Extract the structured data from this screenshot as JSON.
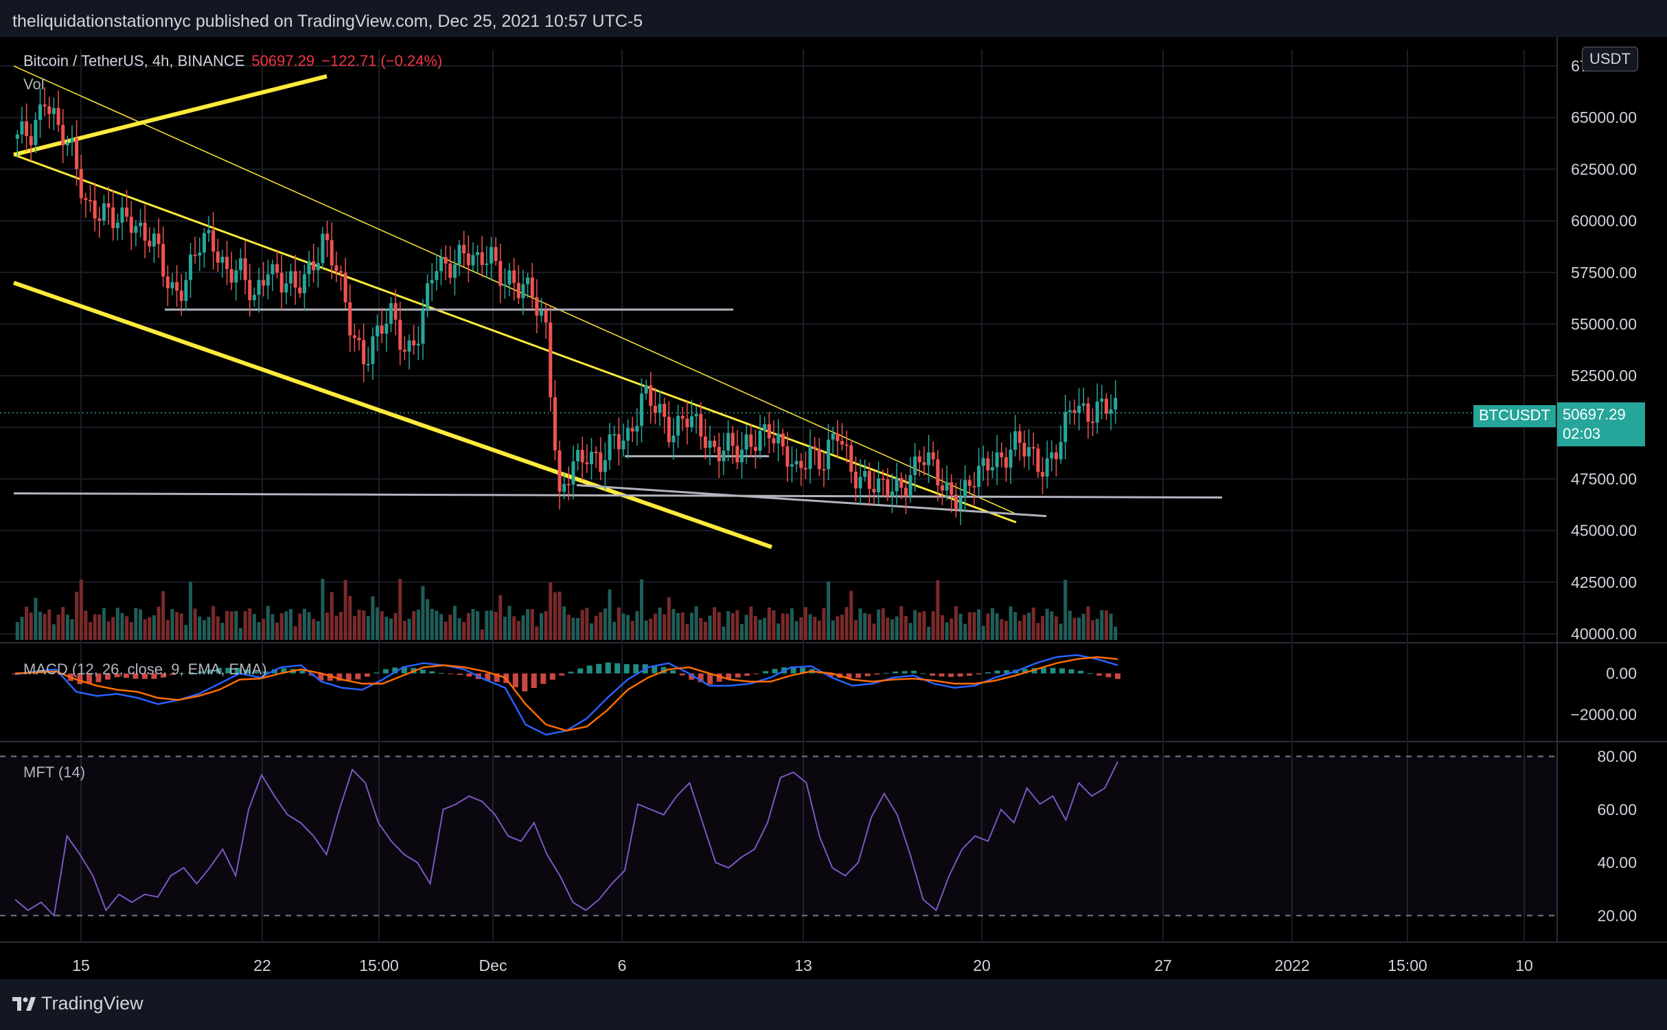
{
  "header": {
    "published_text": "theliquidationstationnyc published on TradingView.com, Dec 25, 2021 10:57 UTC-5"
  },
  "legend": {
    "symbol": "Bitcoin / TetherUS, 4h, BINANCE",
    "price": "50697.29",
    "change": "−122.71 (−0.24%)",
    "volume_label": "Vol",
    "macd_label": "MACD (12, 26, close, 9, EMA, EMA)",
    "mft_label": "MFT (14)"
  },
  "currency_badge": "USDT",
  "price_tag": {
    "symbol": "BTCUSDT",
    "price": "50697.29",
    "countdown": "02:03"
  },
  "footer": {
    "brand": "TradingView"
  },
  "colors": {
    "background": "#131722",
    "up": "#26a69a",
    "down": "#ef5350",
    "trendline": "#ffeb3b",
    "macd": "#2962ff",
    "signal": "#ff6d00",
    "mft": "#7e57c2"
  },
  "chart_data": [
    {
      "type": "candlestick",
      "title": "Bitcoin / TetherUS, 4h, BINANCE",
      "x_ticks": [
        "15",
        "22",
        "15:00",
        "Dec",
        "6",
        "13",
        "20",
        "27",
        "2022",
        "15:00",
        "10"
      ],
      "y_ticks": [
        "40000.00",
        "42500.00",
        "45000.00",
        "47500.00",
        "50000.00",
        "52500.00",
        "55000.00",
        "57500.00",
        "60000.00",
        "62500.00",
        "65000.00",
        "67500.00"
      ],
      "ylim": [
        39700,
        68300
      ],
      "last_price": 50697.29,
      "close_path": [
        63800,
        64300,
        66300,
        64000,
        63300,
        61000,
        60200,
        59800,
        60600,
        59300,
        58500,
        56800,
        57000,
        58500,
        59200,
        57800,
        57400,
        56000,
        58200,
        56900,
        56500,
        57900,
        59100,
        57300,
        55000,
        53400,
        54300,
        55600,
        53800,
        54500,
        57800,
        58100,
        58400,
        57600,
        58800,
        57200,
        56400,
        56800,
        55200,
        46000,
        48300,
        49100,
        48000,
        49300,
        49800,
        51600,
        50600,
        49900,
        50800,
        49600,
        48800,
        49600,
        48400,
        49200,
        50400,
        48800,
        47500,
        49200,
        48300,
        49500,
        48100,
        47600,
        46700,
        47100,
        47600,
        48400,
        47800,
        47100,
        46500,
        47400,
        48800,
        48500,
        49000,
        48800,
        48200,
        48900,
        51300,
        50900,
        50800,
        50697
      ],
      "volume_ylim": [
        0,
        100
      ]
    },
    {
      "type": "line",
      "title": "MACD (12, 26, close, 9, EMA, EMA)",
      "y_ticks": [
        "0.00",
        "−2000.00"
      ],
      "ylim": [
        -3200,
        1300
      ],
      "series": [
        {
          "values": [
            -50,
            100,
            200,
            -900,
            -1100,
            -1000,
            -1200,
            -1500,
            -1300,
            -1000,
            -500,
            0,
            -200,
            300,
            400,
            -400,
            -700,
            -800,
            -300,
            300,
            500,
            400,
            200,
            -300,
            -700,
            -2500,
            -3000,
            -2800,
            -2200,
            -1200,
            -300,
            300,
            500,
            0,
            -600,
            -600,
            -500,
            -200,
            300,
            350,
            -200,
            -600,
            -500,
            -200,
            -100,
            -500,
            -700,
            -600,
            -200,
            100,
            500,
            800,
            900,
            700,
            400
          ]
        },
        {
          "values": [
            0,
            50,
            100,
            -300,
            -600,
            -800,
            -900,
            -1200,
            -1300,
            -1100,
            -800,
            -300,
            -250,
            0,
            200,
            0,
            -300,
            -500,
            -500,
            -100,
            300,
            400,
            300,
            100,
            -200,
            -1500,
            -2500,
            -2800,
            -2600,
            -1800,
            -800,
            -200,
            200,
            300,
            0,
            -300,
            -400,
            -400,
            -100,
            100,
            0,
            -300,
            -400,
            -300,
            -250,
            -350,
            -500,
            -500,
            -350,
            -100,
            200,
            500,
            700,
            800,
            700
          ]
        }
      ]
    },
    {
      "type": "line",
      "title": "MFT (14)",
      "y_ticks": [
        "80.00",
        "60.00",
        "40.00",
        "20.00"
      ],
      "ylim": [
        10,
        84
      ],
      "series": [
        {
          "values": [
            26,
            22,
            25,
            20,
            50,
            43,
            35,
            22,
            28,
            25,
            28,
            27,
            35,
            38,
            32,
            38,
            45,
            35,
            60,
            73,
            65,
            58,
            55,
            50,
            43,
            60,
            75,
            70,
            55,
            48,
            43,
            40,
            32,
            60,
            62,
            65,
            63,
            58,
            50,
            48,
            55,
            43,
            35,
            25,
            22,
            26,
            32,
            37,
            62,
            60,
            58,
            65,
            70,
            55,
            40,
            38,
            42,
            45,
            55,
            72,
            74,
            70,
            50,
            38,
            35,
            40,
            57,
            66,
            58,
            43,
            26,
            22,
            35,
            45,
            50,
            48,
            60,
            55,
            68,
            62,
            65,
            56,
            70,
            65,
            68,
            78
          ]
        }
      ]
    }
  ]
}
